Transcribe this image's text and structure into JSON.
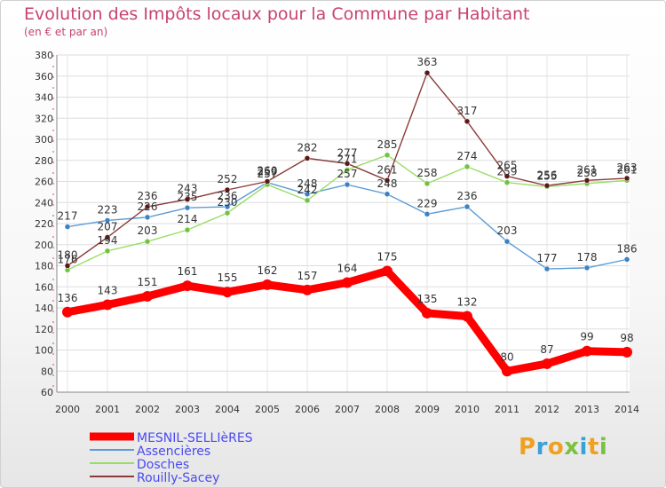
{
  "header": {
    "title": "Evolution des Impôts locaux pour la Commune par Habitant",
    "subtitle": "(en € et par an)"
  },
  "logo": {
    "text": "Proxiti",
    "colors": [
      "#f0a020",
      "#3aa0d8",
      "#f0a020",
      "#7ac142",
      "#3aa0d8",
      "#f0a020",
      "#7ac142"
    ]
  },
  "chart_data": {
    "type": "line",
    "x": [
      "2000",
      "2001",
      "2002",
      "2003",
      "2004",
      "2005",
      "2006",
      "2007",
      "2008",
      "2009",
      "2010",
      "2011",
      "2012",
      "2013",
      "2014"
    ],
    "ylim": [
      60,
      380
    ],
    "yticks": [
      "60",
      "80",
      "100",
      "120",
      "140",
      "160",
      "180",
      "200",
      "220",
      "240",
      "260",
      "280",
      "300",
      "320",
      "340",
      "360",
      "380"
    ],
    "grid": true,
    "legend_position": "bottom-left",
    "series": [
      {
        "name": "MESNIL-SELLIèRES",
        "color": "#ff0000",
        "emphasis": true,
        "values": [
          136,
          143,
          151,
          161,
          155,
          162,
          157,
          164,
          175,
          135,
          132,
          80,
          87,
          99,
          98
        ],
        "labels": [
          "136",
          "143",
          "151",
          "161",
          "155",
          "162",
          "157",
          "164",
          "175",
          "135",
          "132",
          "80",
          "87",
          "99",
          "98"
        ]
      },
      {
        "name": "Assencières",
        "color": "#5b9bd5",
        "marker": "#3a82c4",
        "values": [
          217,
          223,
          226,
          235,
          236,
          259,
          248,
          257,
          248,
          229,
          236,
          203,
          177,
          178,
          186
        ],
        "labels": [
          "217",
          "223",
          "226",
          "235",
          "236",
          "259",
          "248",
          "257",
          "248",
          "229",
          "236",
          "203",
          "177",
          "178",
          "186"
        ]
      },
      {
        "name": "Dosches",
        "color": "#99dd66",
        "marker": "#74c043",
        "values": [
          176,
          194,
          203,
          214,
          230,
          257,
          242,
          271,
          285,
          258,
          274,
          259,
          255,
          258,
          261
        ],
        "labels": [
          "176",
          "194",
          "203",
          "214",
          "230",
          "257",
          "242",
          "271",
          "285",
          "258",
          "274",
          "259",
          "255",
          "258",
          "261"
        ]
      },
      {
        "name": "Rouilly-Sacey",
        "color": "#8b3a3a",
        "marker": "#5e1616",
        "values": [
          180,
          207,
          236,
          243,
          252,
          260,
          282,
          277,
          261,
          363,
          317,
          265,
          256,
          261,
          263
        ],
        "labels": [
          "180",
          "207",
          "236",
          "243",
          "252",
          "260",
          "282",
          "277",
          "261",
          "363",
          "317",
          "265",
          "256",
          "261",
          "263"
        ]
      }
    ]
  }
}
